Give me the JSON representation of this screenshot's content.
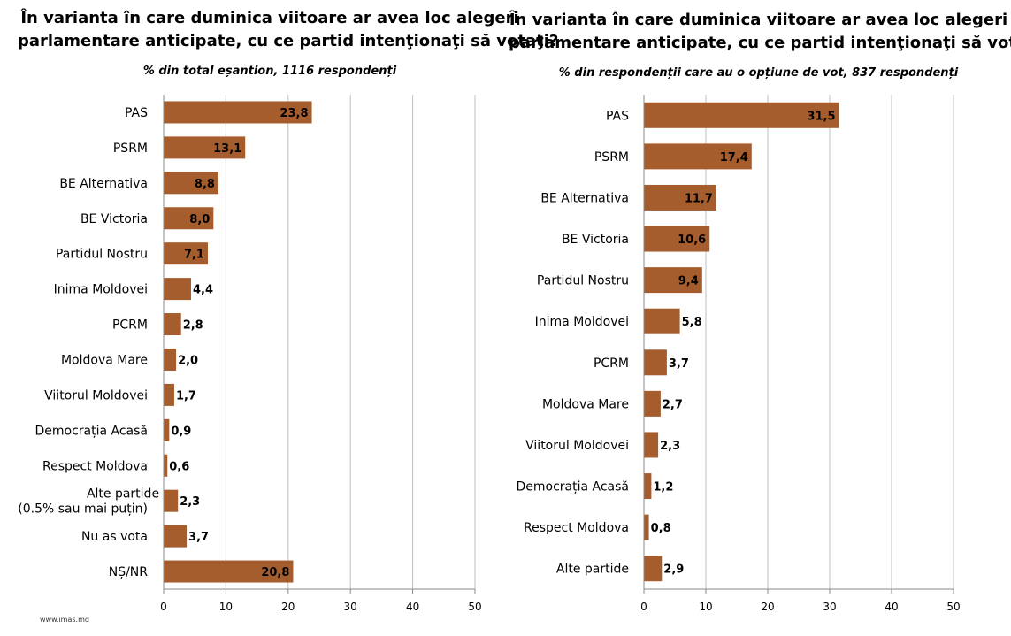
{
  "footer": "www.imas.md",
  "colors": {
    "bar": "#A65D2E",
    "grid": "#bfbfbf",
    "axis": "#888888"
  },
  "chart_data": [
    {
      "type": "bar",
      "orientation": "horizontal",
      "title_lines": [
        "În varianta în care duminica viitoare ar avea loc alegeri",
        "parlamentare anticipate, cu ce partid intenţionaţi să votaţi?"
      ],
      "subtitle": "% din total eșantion, 1116 respondenți",
      "categories": [
        "PAS",
        "PSRM",
        "BE Alternativa",
        "BE Victoria",
        "Partidul Nostru",
        "Inima Moldovei",
        "PCRM",
        "Moldova Mare",
        "Viitorul Moldovei",
        "Democrația Acasă",
        "Respect Moldova",
        "Alte partide|(0.5% sau mai puțin)",
        "Nu as vota",
        "NȘ/NR"
      ],
      "values": [
        23.8,
        13.1,
        8.8,
        8.0,
        7.1,
        4.4,
        2.8,
        2.0,
        1.7,
        0.9,
        0.6,
        2.3,
        3.7,
        20.8
      ],
      "data_labels": [
        "23,8",
        "13,1",
        "8,8",
        "8,0",
        "7,1",
        "4,4",
        "2,8",
        "2,0",
        "1,7",
        "0,9",
        "0,6",
        "2,3",
        "3,7",
        "20,8"
      ],
      "xlim": [
        0,
        50
      ],
      "xticks": [
        0,
        10,
        20,
        30,
        40,
        50
      ],
      "grid": true
    },
    {
      "type": "bar",
      "orientation": "horizontal",
      "title_lines": [
        "În varianta în care duminica viitoare ar avea loc alegeri",
        "parlamentare anticipate, cu ce partid intenţionaţi să votaţi?"
      ],
      "subtitle": "% din respondenții care au o opțiune de vot, 837 respondenți",
      "categories": [
        "PAS",
        "PSRM",
        "BE Alternativa",
        "BE Victoria",
        "Partidul Nostru",
        "Inima Moldovei",
        "PCRM",
        "Moldova Mare",
        "Viitorul Moldovei",
        "Democrația Acasă",
        "Respect Moldova",
        "Alte partide"
      ],
      "values": [
        31.5,
        17.4,
        11.7,
        10.6,
        9.4,
        5.8,
        3.7,
        2.7,
        2.3,
        1.2,
        0.8,
        2.9
      ],
      "data_labels": [
        "31,5",
        "17,4",
        "11,7",
        "10,6",
        "9,4",
        "5,8",
        "3,7",
        "2,7",
        "2,3",
        "1,2",
        "0,8",
        "2,9"
      ],
      "xlim": [
        0,
        50
      ],
      "xticks": [
        0,
        10,
        20,
        30,
        40,
        50
      ],
      "grid": true
    }
  ]
}
